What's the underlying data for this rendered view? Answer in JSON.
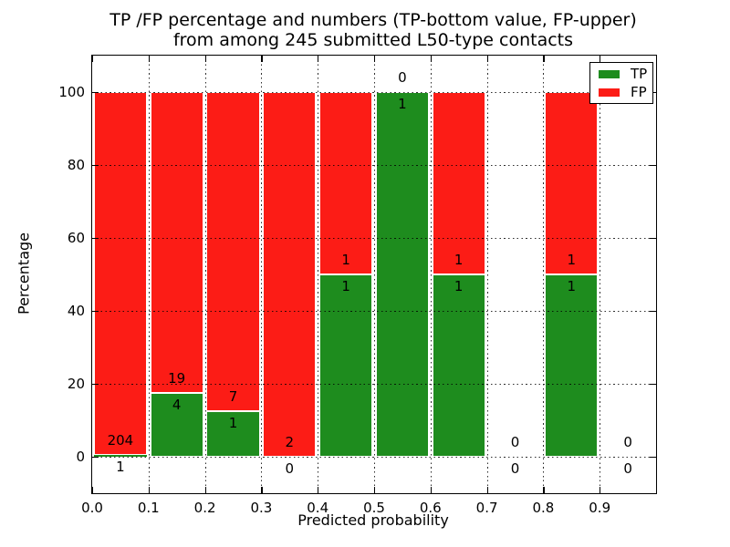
{
  "chart_data": {
    "type": "bar",
    "stacked": true,
    "unit": "percent",
    "title_line1": "TP /FP percentage and numbers (TP-bottom value, FP-upper)",
    "title_line2": "from among 245 submitted L50-type contacts",
    "xlabel": "Predicted probability",
    "ylabel": "Percentage",
    "xlim": [
      0.0,
      1.0
    ],
    "ylim": [
      -10,
      110
    ],
    "xtick_labels": [
      "0.0",
      "0.1",
      "0.2",
      "0.3",
      "0.4",
      "0.5",
      "0.6",
      "0.7",
      "0.8",
      "0.9"
    ],
    "ytick_values": [
      0,
      20,
      40,
      60,
      80,
      100
    ],
    "grid_style": "dotted",
    "total_contacts": 245,
    "colors": {
      "tp": "#1e8c1e",
      "fp": "#fc1c16"
    },
    "legend": {
      "position": "upper-right",
      "entries": [
        {
          "label": "TP",
          "color_key": "tp"
        },
        {
          "label": "FP",
          "color_key": "fp"
        }
      ]
    },
    "bins": [
      {
        "range": [
          0.0,
          0.1
        ],
        "tp": 1,
        "fp": 204,
        "tp_pct": 0.49,
        "fp_pct": 99.51
      },
      {
        "range": [
          0.1,
          0.2
        ],
        "tp": 4,
        "fp": 19,
        "tp_pct": 17.39,
        "fp_pct": 82.61
      },
      {
        "range": [
          0.2,
          0.3
        ],
        "tp": 1,
        "fp": 7,
        "tp_pct": 12.5,
        "fp_pct": 87.5
      },
      {
        "range": [
          0.3,
          0.4
        ],
        "tp": 0,
        "fp": 2,
        "tp_pct": 0,
        "fp_pct": 100
      },
      {
        "range": [
          0.4,
          0.5
        ],
        "tp": 1,
        "fp": 1,
        "tp_pct": 50,
        "fp_pct": 50
      },
      {
        "range": [
          0.5,
          0.6
        ],
        "tp": 1,
        "fp": 0,
        "tp_pct": 100,
        "fp_pct": 0
      },
      {
        "range": [
          0.6,
          0.7
        ],
        "tp": 1,
        "fp": 1,
        "tp_pct": 50,
        "fp_pct": 50
      },
      {
        "range": [
          0.7,
          0.8
        ],
        "tp": 0,
        "fp": 0,
        "tp_pct": 0,
        "fp_pct": 0
      },
      {
        "range": [
          0.8,
          0.9
        ],
        "tp": 1,
        "fp": 1,
        "tp_pct": 50,
        "fp_pct": 50
      },
      {
        "range": [
          0.9,
          1.0
        ],
        "tp": 0,
        "fp": 0,
        "tp_pct": 0,
        "fp_pct": 0
      }
    ]
  }
}
